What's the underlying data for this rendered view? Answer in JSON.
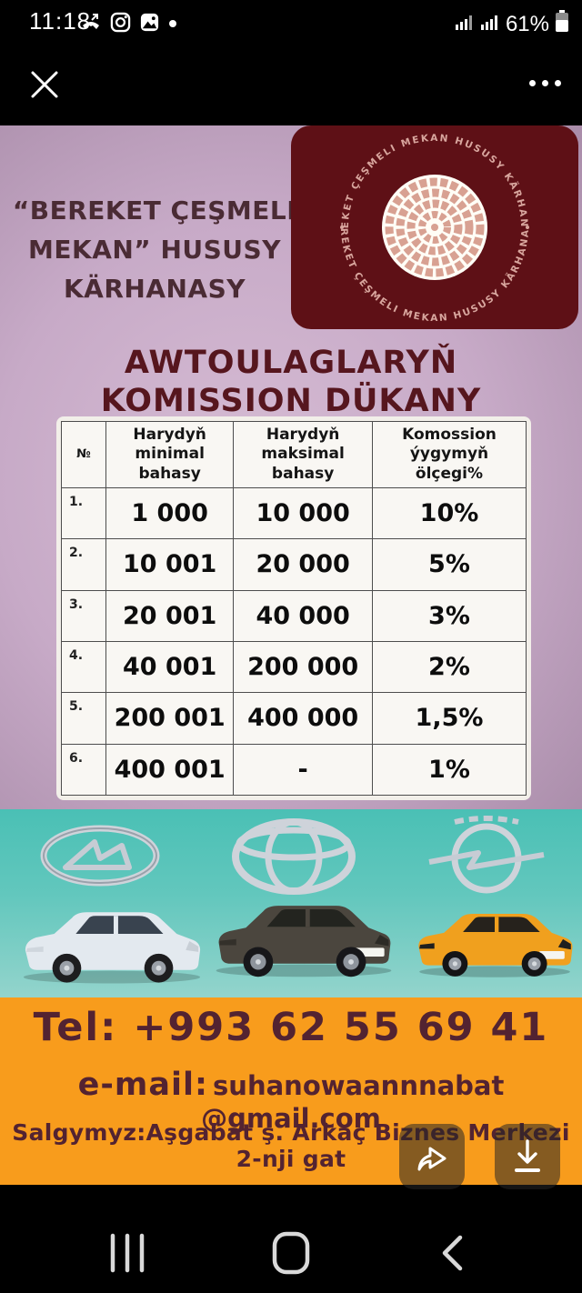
{
  "status_bar": {
    "time": "11:18",
    "battery_percent": "61%",
    "icons": [
      "missed-call-icon",
      "instagram-icon",
      "gallery-icon",
      "notification-dot",
      "signal-icon",
      "signal-icon",
      "battery-icon"
    ]
  },
  "viewer_bar": {
    "close_icon": "x-icon",
    "more_icon": "ellipsis-icon"
  },
  "flyer": {
    "brand": {
      "lines": [
        "“BEREKET ÇEŞMELI",
        "MEKAN” HUSUSY",
        "KÄRHANASY"
      ]
    },
    "logo": {
      "ring_text_top": "BEREKET ÇEŞMELI MEKAN HUSUSY KÄRHANASY",
      "ring_text_bottom": "BEREKET ÇEŞMELI MEKAN HUSUSY KÄRHANASY"
    },
    "title_lines": [
      "AWTOULAGLARYŇ",
      "KOMISSION DÜKANY"
    ],
    "table": {
      "headers": [
        "№",
        "Harydyň minimal bahasy",
        "Harydyň maksimal bahasy",
        "Komossion ýygymyň ölçegi%"
      ],
      "rows": [
        [
          "1.",
          "1 000",
          "10 000",
          "10%"
        ],
        [
          "2.",
          "10 001",
          "20 000",
          "5%"
        ],
        [
          "3.",
          "20 001",
          "40 000",
          "3%"
        ],
        [
          "4.",
          "40 001",
          "200 000",
          "2%"
        ],
        [
          "5.",
          "200 001",
          "400 000",
          "1,5%"
        ],
        [
          "6.",
          "400 001",
          "-",
          "1%"
        ]
      ]
    },
    "car_brands": [
      "lada",
      "toyota",
      "opel"
    ],
    "contact": {
      "tel": "Tel: +993 62 55 69 41",
      "email_label": "e-mail:",
      "email_value": "suhanowaannnabat @gmail.com",
      "address": "Salgymyz:Aşgabat ş. Arkaç Biznes Merkezi 2-nji gat"
    },
    "colors": {
      "pink_bg": "#c7aac7",
      "maroon_logo": "#5e1016",
      "logo_ring_text": "#d8a69e",
      "title_red": "#56161e",
      "teal_bg": "#4ac0b5",
      "orange_bg": "#f89c1c",
      "contact_text": "#532331",
      "brand_text": "#4a2b34"
    }
  },
  "nav_bar": {
    "icons": [
      "recents-icon",
      "home-icon",
      "back-icon"
    ]
  }
}
